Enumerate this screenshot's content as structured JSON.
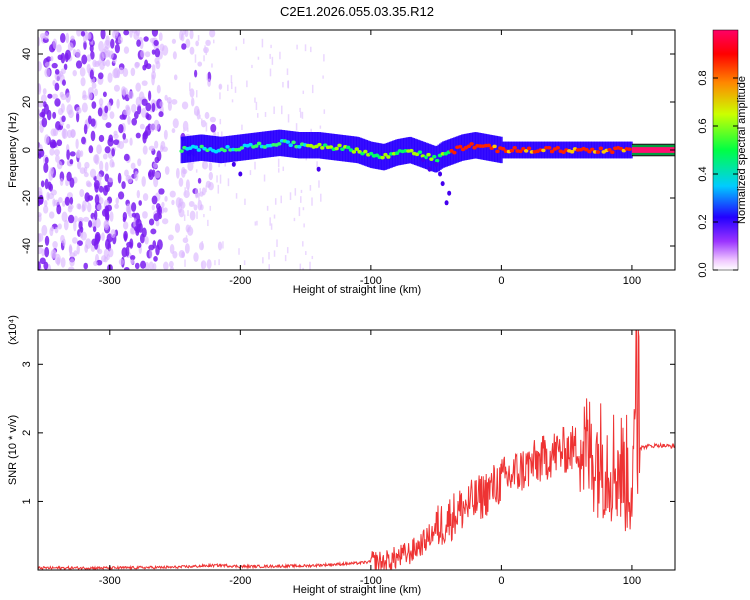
{
  "window": {
    "title": "C2E1.2026.055.03.35.R12"
  },
  "chart_data": [
    {
      "type": "heatmap",
      "title": "C2E1.2026.055.03.35.R12",
      "xlabel": "Height of straight line (km)",
      "ylabel": "Frequency (Hz)",
      "xlim": [
        -355,
        133
      ],
      "ylim": [
        -50,
        50
      ],
      "xticks": [
        -300,
        -200,
        -100,
        0,
        100
      ],
      "yticks": [
        -40,
        -20,
        0,
        20,
        40
      ],
      "grid": false,
      "colorbar": {
        "label": "Normalized spectral amplitude",
        "ticks": [
          0.0,
          0.2,
          0.4,
          0.6,
          0.8
        ],
        "range": [
          0,
          1
        ],
        "colors": [
          "#ffffff",
          "#cc99ff",
          "#7000ff",
          "#0000ff",
          "#00ffff",
          "#00ff00",
          "#ffff00",
          "#ff0000",
          "#ff0066"
        ]
      },
      "noise_region_x": [
        -355,
        -245
      ],
      "signal_track": {
        "x": [
          -245,
          -230,
          -215,
          -200,
          -185,
          -170,
          -155,
          -140,
          -125,
          -110,
          -100,
          -90,
          -80,
          -70,
          -60,
          -50,
          -45,
          -40,
          -30,
          -20,
          -10,
          0,
          20,
          40,
          60,
          80,
          100
        ],
        "freq": [
          0,
          1,
          0,
          1,
          2,
          3,
          2,
          2,
          1,
          0,
          -2,
          -3,
          -1,
          0,
          -2,
          -4,
          -2,
          -1,
          1,
          2,
          1,
          0,
          0,
          0,
          0,
          0,
          0
        ]
      },
      "reference_line_x": [
        100,
        133
      ]
    },
    {
      "type": "line",
      "title": "",
      "xlabel": "Height of straight line (km)",
      "ylabel": "SNR (10 * v/v)",
      "scale_label": "(x10⁴)",
      "xlim": [
        -355,
        133
      ],
      "ylim": [
        0,
        3.5
      ],
      "xticks": [
        -300,
        -200,
        -100,
        0,
        100
      ],
      "yticks": [
        1,
        2,
        3
      ],
      "grid": false,
      "color": "#ee3333",
      "series": [
        {
          "x": [
            -355,
            -300,
            -250,
            -215,
            -200,
            -150,
            -130,
            -110,
            -100,
            -90,
            -80,
            -70,
            -60,
            -50,
            -40,
            -30,
            -20,
            -10,
            0,
            10,
            20,
            30,
            40,
            50,
            60,
            70,
            80,
            90,
            100,
            104,
            107,
            110,
            120,
            133
          ],
          "values": [
            0.03,
            0.03,
            0.04,
            0.07,
            0.05,
            0.06,
            0.08,
            0.1,
            0.12,
            0.1,
            0.18,
            0.25,
            0.4,
            0.6,
            0.75,
            0.9,
            1.0,
            1.15,
            1.3,
            1.4,
            1.5,
            1.6,
            1.7,
            1.75,
            1.8,
            1.7,
            1.6,
            1.5,
            1.3,
            1.85,
            1.78,
            1.8,
            1.82,
            1.8
          ]
        }
      ]
    }
  ]
}
